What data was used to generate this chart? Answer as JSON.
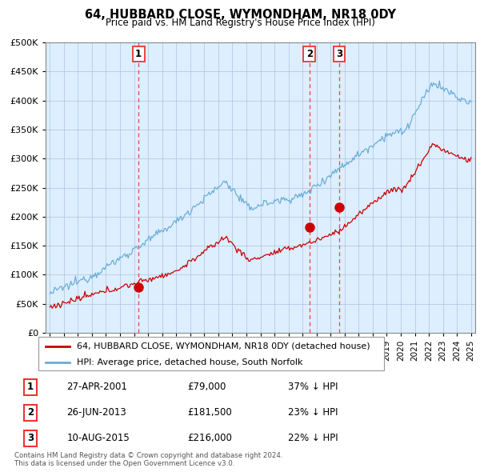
{
  "title": "64, HUBBARD CLOSE, WYMONDHAM, NR18 0DY",
  "subtitle": "Price paid vs. HM Land Registry's House Price Index (HPI)",
  "legend_line1": "64, HUBBARD CLOSE, WYMONDHAM, NR18 0DY (detached house)",
  "legend_line2": "HPI: Average price, detached house, South Norfolk",
  "transactions": [
    {
      "label": "1",
      "date": "27-APR-2001",
      "price": 79000,
      "pct": "37% ↓ HPI",
      "x_year": 2001.32
    },
    {
      "label": "2",
      "date": "26-JUN-2013",
      "price": 181500,
      "pct": "23% ↓ HPI",
      "x_year": 2013.49
    },
    {
      "label": "3",
      "date": "10-AUG-2015",
      "price": 216000,
      "pct": "22% ↓ HPI",
      "x_year": 2015.61
    }
  ],
  "footer_line1": "Contains HM Land Registry data © Crown copyright and database right 2024.",
  "footer_line2": "This data is licensed under the Open Government Licence v3.0.",
  "hpi_color": "#6baed6",
  "price_color": "#cc0000",
  "vline_color": "#ee3333",
  "bg_color": "#ddeeff",
  "ylim": [
    0,
    500000
  ],
  "xlim_start": 1994.7,
  "xlim_end": 2025.3
}
